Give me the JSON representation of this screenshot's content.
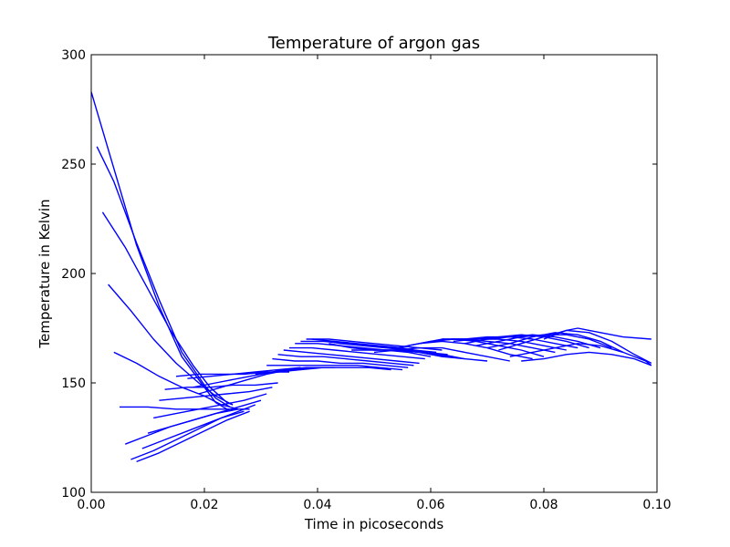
{
  "chart_data": {
    "type": "line",
    "title": "Temperature of argon gas",
    "xlabel": "Time in picoseconds",
    "ylabel": "Temperature in Kelvin",
    "xlim": [
      0.0,
      0.1
    ],
    "ylim": [
      100,
      300
    ],
    "xticks": [
      "0.00",
      "0.02",
      "0.04",
      "0.06",
      "0.08",
      "0.10"
    ],
    "yticks": [
      "100",
      "150",
      "200",
      "250",
      "300"
    ],
    "xtick_values": [
      0.0,
      0.02,
      0.04,
      0.06,
      0.08,
      0.1
    ],
    "ytick_values": [
      100,
      150,
      200,
      250,
      300
    ],
    "grid": false,
    "line_color": "#0000ff",
    "series": [
      {
        "x": [
          0.0,
          0.004,
          0.008,
          0.012,
          0.016,
          0.02,
          0.022,
          0.024
        ],
        "y": [
          283,
          248,
          213,
          185,
          162,
          148,
          141,
          138
        ]
      },
      {
        "x": [
          0.001,
          0.004,
          0.008,
          0.012,
          0.016,
          0.02,
          0.022,
          0.0245
        ],
        "y": [
          258,
          242,
          214,
          188,
          164,
          149,
          143,
          139
        ]
      },
      {
        "x": [
          0.002,
          0.006,
          0.01,
          0.014,
          0.018,
          0.021,
          0.024,
          0.025
        ],
        "y": [
          228,
          212,
          193,
          174,
          158,
          148,
          141,
          140
        ]
      },
      {
        "x": [
          0.003,
          0.007,
          0.011,
          0.015,
          0.019,
          0.022,
          0.025
        ],
        "y": [
          195,
          183,
          170,
          159,
          150,
          144,
          140
        ]
      },
      {
        "x": [
          0.004,
          0.008,
          0.012,
          0.016,
          0.02,
          0.023,
          0.026
        ],
        "y": [
          164,
          159,
          153,
          148,
          144,
          140,
          138
        ]
      },
      {
        "x": [
          0.005,
          0.01,
          0.015,
          0.02,
          0.025,
          0.028
        ],
        "y": [
          139,
          139,
          138,
          138,
          138,
          138
        ]
      },
      {
        "x": [
          0.006,
          0.01,
          0.014,
          0.018,
          0.022,
          0.026
        ],
        "y": [
          122,
          126,
          130,
          133,
          136,
          138
        ]
      },
      {
        "x": [
          0.007,
          0.011,
          0.015,
          0.019,
          0.023,
          0.027
        ],
        "y": [
          115,
          119,
          124,
          129,
          134,
          137
        ]
      },
      {
        "x": [
          0.008,
          0.012,
          0.016,
          0.02,
          0.024,
          0.028
        ],
        "y": [
          114,
          118,
          123,
          128,
          133,
          137
        ]
      },
      {
        "x": [
          0.009,
          0.013,
          0.017,
          0.021,
          0.025,
          0.029
        ],
        "y": [
          120,
          124,
          128,
          132,
          136,
          140
        ]
      },
      {
        "x": [
          0.01,
          0.014,
          0.018,
          0.022,
          0.026,
          0.03
        ],
        "y": [
          127,
          130,
          133,
          136,
          139,
          142
        ]
      },
      {
        "x": [
          0.011,
          0.015,
          0.019,
          0.023,
          0.027,
          0.031
        ],
        "y": [
          134,
          136,
          138,
          140,
          142,
          145
        ]
      },
      {
        "x": [
          0.012,
          0.016,
          0.02,
          0.024,
          0.028,
          0.032
        ],
        "y": [
          142,
          143,
          144,
          145,
          146,
          148
        ]
      },
      {
        "x": [
          0.013,
          0.017,
          0.021,
          0.025,
          0.029,
          0.033
        ],
        "y": [
          147,
          148,
          148,
          149,
          149,
          150
        ]
      },
      {
        "x": [
          0.015,
          0.019,
          0.023,
          0.027,
          0.031,
          0.035
        ],
        "y": [
          153,
          154,
          154,
          154,
          155,
          155
        ]
      },
      {
        "x": [
          0.017,
          0.021,
          0.025,
          0.029,
          0.033,
          0.037
        ],
        "y": [
          152,
          153,
          154,
          155,
          156,
          157
        ]
      },
      {
        "x": [
          0.018,
          0.022,
          0.026,
          0.03,
          0.034,
          0.038,
          0.042
        ],
        "y": [
          148,
          150,
          152,
          154,
          156,
          157,
          157
        ]
      },
      {
        "x": [
          0.019,
          0.023,
          0.027,
          0.031,
          0.035,
          0.039,
          0.043
        ],
        "y": [
          145,
          148,
          151,
          154,
          156,
          157,
          157
        ]
      },
      {
        "x": [
          0.029,
          0.033,
          0.037,
          0.041,
          0.045,
          0.049,
          0.053
        ],
        "y": [
          154,
          155,
          156,
          157,
          157,
          157,
          156
        ]
      },
      {
        "x": [
          0.031,
          0.035,
          0.039,
          0.043,
          0.047,
          0.051,
          0.055
        ],
        "y": [
          158,
          158,
          158,
          158,
          158,
          157,
          156
        ]
      },
      {
        "x": [
          0.032,
          0.036,
          0.04,
          0.044,
          0.048,
          0.052,
          0.056
        ],
        "y": [
          161,
          160,
          160,
          159,
          159,
          158,
          157
        ]
      },
      {
        "x": [
          0.033,
          0.037,
          0.041,
          0.045,
          0.049,
          0.053,
          0.057
        ],
        "y": [
          163,
          162,
          162,
          161,
          160,
          159,
          158
        ]
      },
      {
        "x": [
          0.034,
          0.038,
          0.042,
          0.046,
          0.05,
          0.054,
          0.058
        ],
        "y": [
          165,
          164,
          163,
          162,
          161,
          160,
          159
        ]
      },
      {
        "x": [
          0.035,
          0.039,
          0.043,
          0.047,
          0.051,
          0.055,
          0.059
        ],
        "y": [
          166,
          166,
          165,
          164,
          163,
          162,
          161
        ]
      },
      {
        "x": [
          0.036,
          0.04,
          0.044,
          0.048,
          0.052,
          0.056,
          0.06
        ],
        "y": [
          168,
          168,
          167,
          166,
          165,
          164,
          162
        ]
      },
      {
        "x": [
          0.037,
          0.041,
          0.045,
          0.049,
          0.053,
          0.057,
          0.061
        ],
        "y": [
          169,
          169,
          168,
          167,
          166,
          165,
          164
        ]
      },
      {
        "x": [
          0.038,
          0.042,
          0.046,
          0.05,
          0.054,
          0.058,
          0.062
        ],
        "y": [
          170,
          170,
          169,
          168,
          167,
          166,
          165
        ]
      },
      {
        "x": [
          0.039,
          0.043,
          0.047,
          0.051,
          0.055,
          0.059,
          0.063
        ],
        "y": [
          170,
          169,
          168,
          167,
          166,
          164,
          163
        ]
      },
      {
        "x": [
          0.04,
          0.044,
          0.048,
          0.052,
          0.056,
          0.06,
          0.064
        ],
        "y": [
          170,
          168,
          167,
          166,
          165,
          163,
          162
        ]
      },
      {
        "x": [
          0.042,
          0.046,
          0.05,
          0.054,
          0.058,
          0.062,
          0.066
        ],
        "y": [
          168,
          166,
          165,
          165,
          164,
          162,
          161
        ]
      },
      {
        "x": [
          0.046,
          0.05,
          0.054,
          0.058,
          0.062,
          0.066,
          0.07
        ],
        "y": [
          165,
          165,
          165,
          164,
          163,
          161,
          160
        ]
      },
      {
        "x": [
          0.05,
          0.054,
          0.058,
          0.062,
          0.066,
          0.07,
          0.074
        ],
        "y": [
          164,
          165,
          166,
          166,
          164,
          162,
          160
        ]
      },
      {
        "x": [
          0.054,
          0.058,
          0.062,
          0.066,
          0.07,
          0.074,
          0.078
        ],
        "y": [
          166,
          168,
          169,
          168,
          166,
          163,
          161
        ]
      },
      {
        "x": [
          0.056,
          0.06,
          0.064,
          0.068,
          0.072,
          0.076,
          0.08
        ],
        "y": [
          167,
          169,
          170,
          169,
          167,
          165,
          162
        ]
      },
      {
        "x": [
          0.058,
          0.062,
          0.066,
          0.07,
          0.074,
          0.078,
          0.082
        ],
        "y": [
          168,
          170,
          170,
          169,
          168,
          166,
          164
        ]
      },
      {
        "x": [
          0.06,
          0.064,
          0.068,
          0.072,
          0.076,
          0.08,
          0.084
        ],
        "y": [
          169,
          170,
          170,
          170,
          169,
          167,
          165
        ]
      },
      {
        "x": [
          0.062,
          0.066,
          0.07,
          0.074,
          0.078,
          0.082,
          0.086
        ],
        "y": [
          170,
          170,
          171,
          171,
          170,
          168,
          166
        ]
      },
      {
        "x": [
          0.064,
          0.068,
          0.072,
          0.076,
          0.08,
          0.084,
          0.088
        ],
        "y": [
          169,
          170,
          171,
          172,
          171,
          169,
          166
        ]
      },
      {
        "x": [
          0.066,
          0.07,
          0.074,
          0.078,
          0.082,
          0.086,
          0.09
        ],
        "y": [
          168,
          170,
          171,
          172,
          171,
          169,
          166
        ]
      },
      {
        "x": [
          0.068,
          0.072,
          0.076,
          0.08,
          0.084,
          0.088,
          0.092
        ],
        "y": [
          167,
          169,
          171,
          172,
          172,
          170,
          166
        ]
      },
      {
        "x": [
          0.07,
          0.074,
          0.078,
          0.082,
          0.086,
          0.09,
          0.094
        ],
        "y": [
          166,
          168,
          171,
          173,
          172,
          169,
          164
        ]
      },
      {
        "x": [
          0.072,
          0.076,
          0.08,
          0.084,
          0.088,
          0.092,
          0.096,
          0.099
        ],
        "y": [
          165,
          168,
          171,
          174,
          173,
          169,
          163,
          159
        ]
      },
      {
        "x": [
          0.074,
          0.078,
          0.082,
          0.086,
          0.09,
          0.094,
          0.098,
          0.099
        ],
        "y": [
          162,
          164,
          166,
          168,
          167,
          164,
          160,
          158
        ]
      },
      {
        "x": [
          0.076,
          0.08,
          0.084,
          0.088,
          0.092,
          0.096,
          0.099
        ],
        "y": [
          160,
          161,
          163,
          164,
          163,
          161,
          158
        ]
      },
      {
        "x": [
          0.08,
          0.084,
          0.086,
          0.088,
          0.09,
          0.094,
          0.099
        ],
        "y": [
          170,
          174,
          175,
          174,
          173,
          171,
          170
        ]
      }
    ]
  }
}
